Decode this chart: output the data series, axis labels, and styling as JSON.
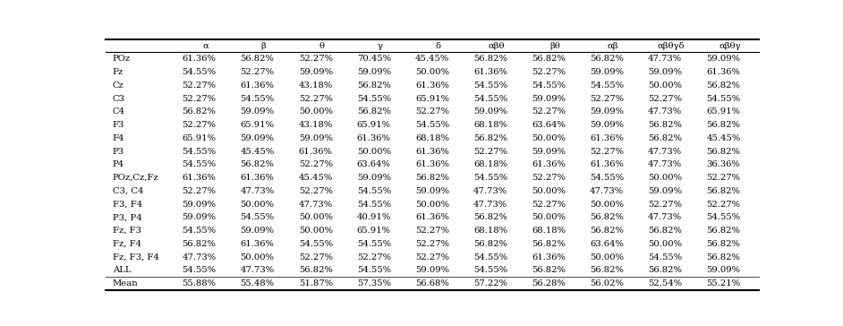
{
  "columns": [
    "α",
    "β",
    "θ",
    "γ",
    "δ",
    "αβθ",
    "βθ",
    "αβ",
    "αβθγδ",
    "αβθγ"
  ],
  "rows": [
    "POz",
    "Fz",
    "Cz",
    "C3",
    "C4",
    "F3",
    "F4",
    "P3",
    "P4",
    "POz,Cz,Fz",
    "C3, C4",
    "F3, F4",
    "P3, P4",
    "Fz, F3",
    "Fz, F4",
    "Fz, F3, F4",
    "ALL",
    "Mean"
  ],
  "data": [
    [
      "61.36%",
      "56.82%",
      "52.27%",
      "70.45%",
      "45.45%",
      "56.82%",
      "56.82%",
      "56.82%",
      "47.73%",
      "59.09%"
    ],
    [
      "54.55%",
      "52.27%",
      "59.09%",
      "59.09%",
      "50.00%",
      "61.36%",
      "52.27%",
      "59.09%",
      "59.09%",
      "61.36%"
    ],
    [
      "52.27%",
      "61.36%",
      "43.18%",
      "56.82%",
      "61.36%",
      "54.55%",
      "54.55%",
      "54.55%",
      "50.00%",
      "56.82%"
    ],
    [
      "52.27%",
      "54.55%",
      "52.27%",
      "54.55%",
      "65.91%",
      "54.55%",
      "59.09%",
      "52.27%",
      "52.27%",
      "54.55%"
    ],
    [
      "56.82%",
      "59.09%",
      "50.00%",
      "56.82%",
      "52.27%",
      "59.09%",
      "52.27%",
      "59.09%",
      "47.73%",
      "65.91%"
    ],
    [
      "52.27%",
      "65.91%",
      "43.18%",
      "65.91%",
      "54.55%",
      "68.18%",
      "63.64%",
      "59.09%",
      "56.82%",
      "56.82%"
    ],
    [
      "65.91%",
      "59.09%",
      "59.09%",
      "61.36%",
      "68.18%",
      "56.82%",
      "50.00%",
      "61.36%",
      "56.82%",
      "45.45%"
    ],
    [
      "54.55%",
      "45.45%",
      "61.36%",
      "50.00%",
      "61.36%",
      "52.27%",
      "59.09%",
      "52.27%",
      "47.73%",
      "56.82%"
    ],
    [
      "54.55%",
      "56.82%",
      "52.27%",
      "63.64%",
      "61.36%",
      "68.18%",
      "61.36%",
      "61.36%",
      "47.73%",
      "36.36%"
    ],
    [
      "61.36%",
      "61.36%",
      "45.45%",
      "59.09%",
      "56.82%",
      "54.55%",
      "52.27%",
      "54.55%",
      "50.00%",
      "52.27%"
    ],
    [
      "52.27%",
      "47.73%",
      "52.27%",
      "54.55%",
      "59.09%",
      "47.73%",
      "50.00%",
      "47.73%",
      "59.09%",
      "56.82%"
    ],
    [
      "59.09%",
      "50.00%",
      "47.73%",
      "54.55%",
      "50.00%",
      "47.73%",
      "52.27%",
      "50.00%",
      "52.27%",
      "52.27%"
    ],
    [
      "59.09%",
      "54.55%",
      "50.00%",
      "40.91%",
      "61.36%",
      "56.82%",
      "50.00%",
      "56.82%",
      "47.73%",
      "54.55%"
    ],
    [
      "54.55%",
      "59.09%",
      "50.00%",
      "65.91%",
      "52.27%",
      "68.18%",
      "68.18%",
      "56.82%",
      "56.82%",
      "56.82%"
    ],
    [
      "56.82%",
      "61.36%",
      "54.55%",
      "54.55%",
      "52.27%",
      "56.82%",
      "56.82%",
      "63.64%",
      "50.00%",
      "56.82%"
    ],
    [
      "47.73%",
      "50.00%",
      "52.27%",
      "52.27%",
      "52.27%",
      "54.55%",
      "61.36%",
      "50.00%",
      "54.55%",
      "56.82%"
    ],
    [
      "54.55%",
      "47.73%",
      "56.82%",
      "54.55%",
      "59.09%",
      "54.55%",
      "56.82%",
      "56.82%",
      "56.82%",
      "59.09%"
    ],
    [
      "55.88%",
      "55.48%",
      "51.87%",
      "57.35%",
      "56.68%",
      "57.22%",
      "56.28%",
      "56.02%",
      "52.54%",
      "55.21%"
    ]
  ],
  "bg_color": "#ffffff",
  "text_color": "#000000",
  "font_size": 7.2,
  "font_family": "DejaVu Serif"
}
